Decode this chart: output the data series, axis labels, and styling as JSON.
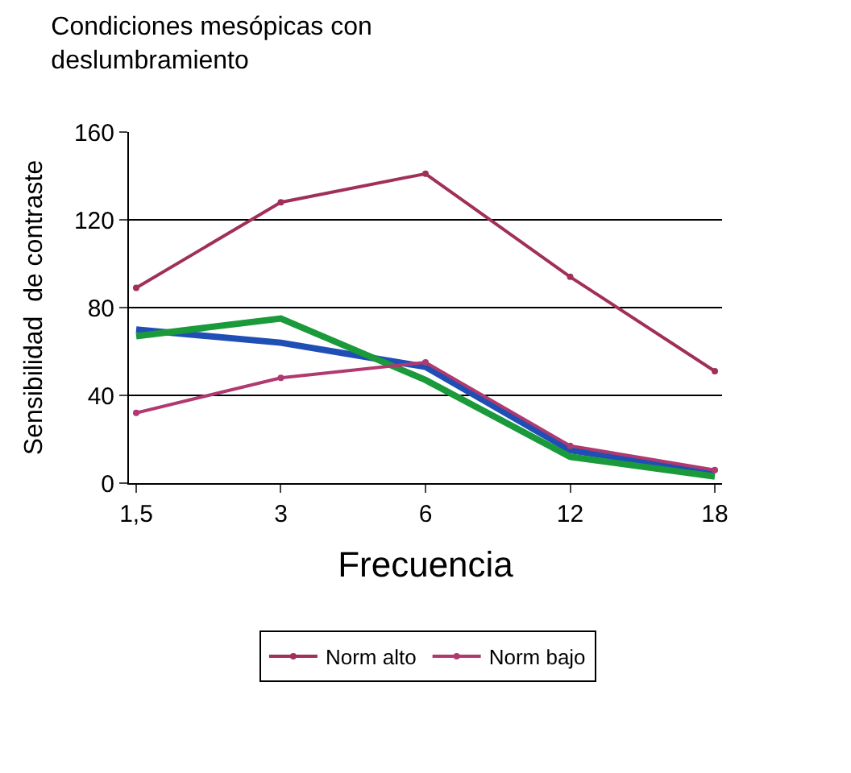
{
  "chart_data": {
    "type": "line",
    "title": "Condiciones mesópicas con\ndeslumbramiento",
    "xlabel": "Frecuencia",
    "ylabel": "Sensibilidad  de contraste",
    "categories": [
      "1,5",
      "3",
      "6",
      "12",
      "18"
    ],
    "series": [
      {
        "color": "#1f4fb5",
        "values": [
          70,
          64,
          53,
          15,
          5
        ],
        "marker": "none"
      },
      {
        "color": "#1a9a3a",
        "values": [
          67,
          75,
          47,
          12,
          3
        ],
        "marker": "none"
      },
      {
        "name": "Norm alto",
        "color": "#a0305a",
        "values": [
          89,
          128,
          141,
          94,
          51
        ],
        "marker": "circle"
      },
      {
        "name": "Norm bajo",
        "color": "#b03a70",
        "values": [
          32,
          48,
          55,
          17,
          6
        ],
        "marker": "circle"
      }
    ],
    "ylim": [
      0,
      160
    ],
    "yticks": [
      0,
      40,
      80,
      120,
      160
    ],
    "grid": "y",
    "legend": "bottom",
    "line_style": "solid"
  }
}
